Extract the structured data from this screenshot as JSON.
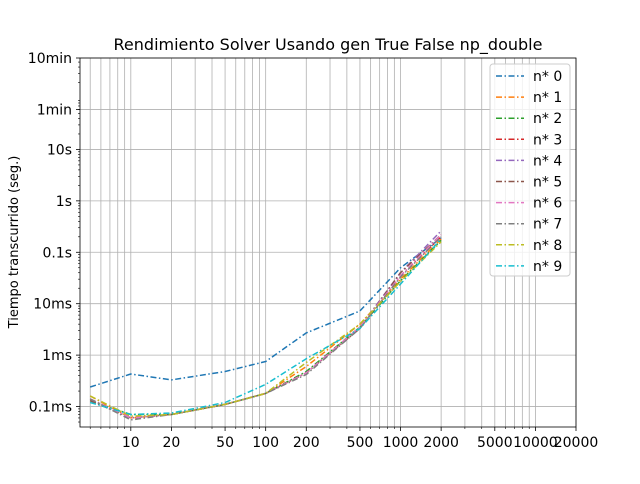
{
  "chart_data": {
    "type": "line",
    "title": "Rendimiento  Solver Usando gen True False np_double",
    "xlabel": "",
    "ylabel": "Tiempo transcurrido (seg.)",
    "x_scale": "log",
    "y_scale": "log",
    "xlim": [
      4.2,
      20000
    ],
    "ylim": [
      4e-05,
      600
    ],
    "grid": true,
    "legend_position": "top-right",
    "x_ticks": [
      {
        "value": 10,
        "label": "10"
      },
      {
        "value": 20,
        "label": "20"
      },
      {
        "value": 50,
        "label": "50"
      },
      {
        "value": 100,
        "label": "100"
      },
      {
        "value": 200,
        "label": "200"
      },
      {
        "value": 500,
        "label": "500"
      },
      {
        "value": 1000,
        "label": "1000"
      },
      {
        "value": 2000,
        "label": "2000"
      },
      {
        "value": 5000,
        "label": "5000"
      },
      {
        "value": 10000,
        "label": "10000"
      },
      {
        "value": 20000,
        "label": "20000"
      }
    ],
    "y_ticks": [
      {
        "value": 0.0001,
        "label": "0.1ms"
      },
      {
        "value": 0.001,
        "label": "1ms"
      },
      {
        "value": 0.01,
        "label": "10ms"
      },
      {
        "value": 0.1,
        "label": "0.1s"
      },
      {
        "value": 1,
        "label": "1s"
      },
      {
        "value": 10,
        "label": "10s"
      },
      {
        "value": 60,
        "label": "1min"
      },
      {
        "value": 600,
        "label": "10min"
      }
    ],
    "x": [
      5,
      10,
      20,
      50,
      100,
      200,
      500,
      1000,
      2000
    ],
    "series": [
      {
        "name": "n* 0",
        "color": "#1f77b4",
        "values": [
          0.00024,
          0.00043,
          0.00033,
          0.00048,
          0.00075,
          0.0027,
          0.0072,
          0.05,
          0.19
        ]
      },
      {
        "name": "n* 1",
        "color": "#ff7f0e",
        "values": [
          0.00016,
          6e-05,
          7e-05,
          0.00011,
          0.00018,
          0.0006,
          0.004,
          0.03,
          0.18
        ]
      },
      {
        "name": "n* 2",
        "color": "#2ca02c",
        "values": [
          0.00013,
          7e-05,
          7e-05,
          0.00011,
          0.00018,
          0.00048,
          0.0035,
          0.028,
          0.17
        ]
      },
      {
        "name": "n* 3",
        "color": "#d62728",
        "values": [
          0.00014,
          6e-05,
          7e-05,
          0.00011,
          0.00018,
          0.00045,
          0.0035,
          0.035,
          0.2
        ]
      },
      {
        "name": "n* 4",
        "color": "#9467bd",
        "values": [
          0.00014,
          6e-05,
          7e-05,
          0.00011,
          0.00018,
          0.00045,
          0.0035,
          0.04,
          0.26
        ]
      },
      {
        "name": "n* 5",
        "color": "#8c564b",
        "values": [
          0.00013,
          6e-05,
          7e-05,
          0.00011,
          0.00018,
          0.00045,
          0.0033,
          0.04,
          0.22
        ]
      },
      {
        "name": "n* 6",
        "color": "#e377c2",
        "values": [
          0.00014,
          6e-05,
          7e-05,
          0.00011,
          0.00018,
          0.00045,
          0.0035,
          0.035,
          0.22
        ]
      },
      {
        "name": "n* 7",
        "color": "#7f7f7f",
        "values": [
          0.00014,
          5.5e-05,
          7e-05,
          0.00011,
          0.00018,
          0.00042,
          0.0033,
          0.033,
          0.2
        ]
      },
      {
        "name": "n* 8",
        "color": "#bcbd22",
        "values": [
          0.00016,
          6.5e-05,
          7e-05,
          0.00011,
          0.00018,
          0.00072,
          0.004,
          0.027,
          0.16
        ]
      },
      {
        "name": "n* 9",
        "color": "#17becf",
        "values": [
          0.00012,
          7e-05,
          7.5e-05,
          0.00012,
          0.00027,
          0.00085,
          0.0033,
          0.024,
          0.18
        ]
      }
    ]
  }
}
